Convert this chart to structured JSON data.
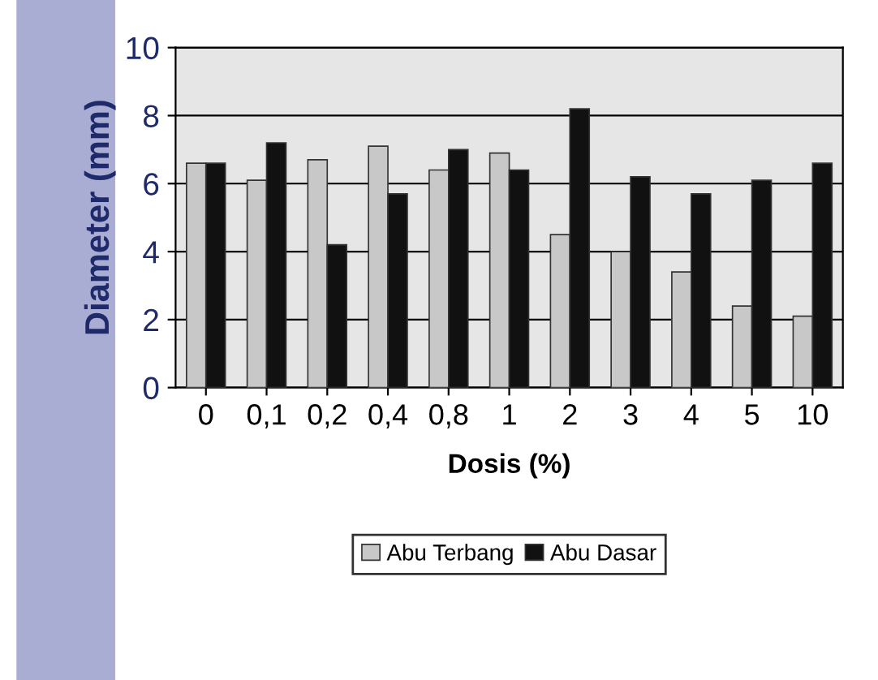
{
  "chart_data": {
    "type": "bar",
    "xlabel": "Dosis (%)",
    "ylabel": "Diameter (mm)",
    "categories": [
      "0",
      "0,1",
      "0,2",
      "0,4",
      "0,8",
      "1",
      "2",
      "3",
      "4",
      "5",
      "10"
    ],
    "series": [
      {
        "name": "Abu Terbang",
        "color": "#c8c8c8",
        "values": [
          6.6,
          6.1,
          6.7,
          7.1,
          6.4,
          6.9,
          4.5,
          4.0,
          3.4,
          2.4,
          2.1
        ]
      },
      {
        "name": "Abu Dasar",
        "color": "#111111",
        "values": [
          6.6,
          7.2,
          4.2,
          5.7,
          7.0,
          6.4,
          8.2,
          6.2,
          5.7,
          6.1,
          6.6
        ]
      }
    ],
    "ylim": [
      0,
      10
    ],
    "yticks": [
      0,
      2,
      4,
      6,
      8,
      10
    ],
    "grid": "y",
    "legend": "bottom"
  }
}
